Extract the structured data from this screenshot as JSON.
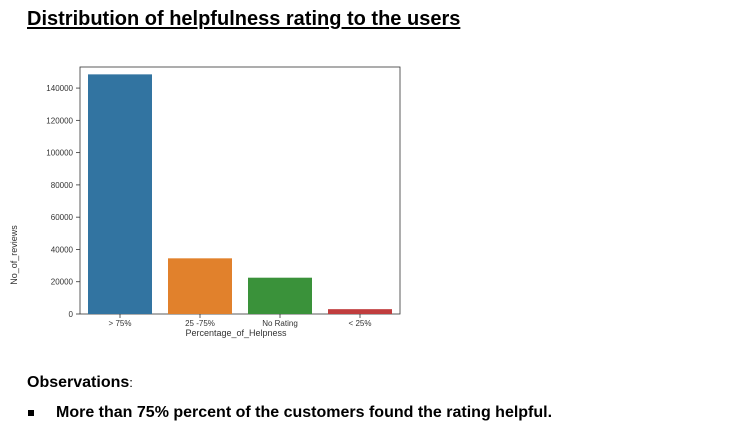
{
  "document": {
    "title": "Distribution of helpfulness rating to the users",
    "observations_heading": "Observations",
    "observations_colon": ":",
    "observations": [
      "More than 75% percent of the customers found the rating helpful."
    ]
  },
  "chart_data": {
    "type": "bar",
    "title": "",
    "xlabel": "Percentage_of_Helpness",
    "ylabel": "No_of_reviews",
    "categories": [
      "> 75%",
      "25 -75%",
      "No Rating",
      "< 25%"
    ],
    "values": [
      148500,
      34500,
      22500,
      3000
    ],
    "colors": [
      "#3274a1",
      "#e1812c",
      "#3a923a",
      "#c03d3e"
    ],
    "ylim": [
      0,
      150000
    ],
    "yticks": [
      0,
      20000,
      40000,
      60000,
      80000,
      100000,
      120000,
      140000
    ],
    "ytick_labels": [
      "0",
      "20000",
      "40000",
      "60000",
      "80000",
      "100000",
      "120000",
      "140000"
    ],
    "grid": false,
    "legend": "none"
  }
}
